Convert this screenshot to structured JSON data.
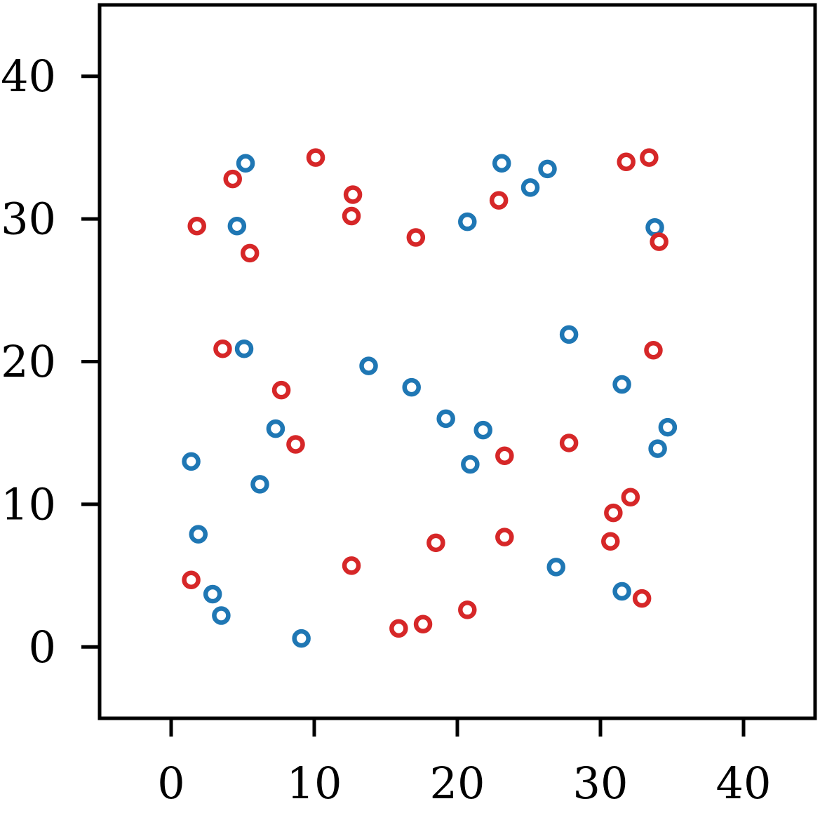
{
  "chart_data": {
    "type": "scatter",
    "xlim": [
      -5,
      45
    ],
    "ylim": [
      -5,
      45
    ],
    "x_ticks": [
      0,
      10,
      20,
      30,
      40
    ],
    "y_ticks": [
      0,
      10,
      20,
      30,
      40
    ],
    "x_tick_labels": [
      "0",
      "10",
      "20",
      "30",
      "40"
    ],
    "y_tick_labels": [
      "0",
      "10",
      "20",
      "30",
      "40"
    ],
    "grid": false,
    "marker": "hollow circle",
    "series": [
      {
        "color": "#1f77b4",
        "points": [
          [
            5.2,
            33.9
          ],
          [
            4.6,
            29.5
          ],
          [
            5.1,
            20.9
          ],
          [
            7.3,
            15.3
          ],
          [
            6.2,
            11.4
          ],
          [
            1.4,
            13.0
          ],
          [
            1.9,
            7.9
          ],
          [
            2.9,
            3.7
          ],
          [
            3.5,
            2.2
          ],
          [
            9.1,
            0.6
          ],
          [
            13.8,
            19.7
          ],
          [
            16.8,
            18.2
          ],
          [
            19.2,
            16.0
          ],
          [
            21.8,
            15.2
          ],
          [
            20.9,
            12.8
          ],
          [
            20.7,
            29.8
          ],
          [
            23.1,
            33.9
          ],
          [
            25.1,
            32.2
          ],
          [
            26.3,
            33.5
          ],
          [
            27.8,
            21.9
          ],
          [
            31.5,
            18.4
          ],
          [
            34.7,
            15.4
          ],
          [
            34.0,
            13.9
          ],
          [
            33.8,
            29.4
          ],
          [
            26.9,
            5.6
          ],
          [
            31.5,
            3.9
          ]
        ]
      },
      {
        "color": "#d62728",
        "points": [
          [
            4.3,
            32.8
          ],
          [
            1.8,
            29.5
          ],
          [
            5.5,
            27.6
          ],
          [
            3.6,
            20.9
          ],
          [
            7.7,
            18.0
          ],
          [
            8.7,
            14.2
          ],
          [
            1.4,
            4.7
          ],
          [
            10.1,
            34.3
          ],
          [
            12.7,
            31.7
          ],
          [
            12.6,
            30.2
          ],
          [
            17.1,
            28.7
          ],
          [
            12.6,
            5.7
          ],
          [
            15.9,
            1.3
          ],
          [
            17.6,
            1.6
          ],
          [
            18.5,
            7.3
          ],
          [
            20.7,
            2.6
          ],
          [
            23.3,
            7.7
          ],
          [
            23.3,
            13.4
          ],
          [
            22.9,
            31.3
          ],
          [
            27.8,
            14.3
          ],
          [
            31.8,
            34.0
          ],
          [
            33.4,
            34.3
          ],
          [
            34.1,
            28.4
          ],
          [
            33.7,
            20.8
          ],
          [
            32.1,
            10.5
          ],
          [
            30.9,
            9.4
          ],
          [
            30.7,
            7.4
          ],
          [
            32.9,
            3.4
          ]
        ]
      }
    ]
  }
}
